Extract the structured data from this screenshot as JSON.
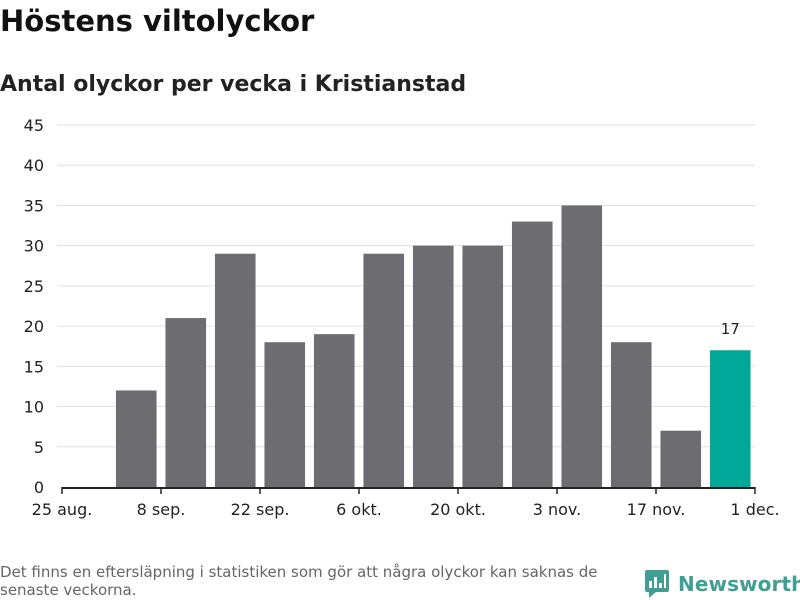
{
  "header": {
    "title": "Höstens viltolyckor",
    "subtitle": "Antal olyckor per vecka i Kristianstad"
  },
  "footer": {
    "note": "Det finns en eftersläpning i statistiken som gör att några olyckor kan saknas de senaste veckorna.",
    "brand": "Newsworthy"
  },
  "colors": {
    "bar": "#6d6c71",
    "highlight": "#00a89a",
    "grid": "#e0e0e0",
    "axis": "#222222",
    "brand": "#3f9f94"
  },
  "chart_data": {
    "type": "bar",
    "title": "Antal olyckor per vecka i Kristianstad",
    "x_tick_labels": [
      "25 aug.",
      "8 sep.",
      "22 sep.",
      "6 okt.",
      "20 okt.",
      "3 nov.",
      "17 nov.",
      "1 dec."
    ],
    "y_ticks": [
      0,
      5,
      10,
      15,
      20,
      25,
      30,
      35,
      40,
      45
    ],
    "ylim": [
      0,
      45
    ],
    "grid": true,
    "values": [
      12,
      21,
      29,
      18,
      19,
      29,
      30,
      30,
      33,
      35,
      18,
      7,
      17
    ],
    "highlight_index": 12,
    "data_labels": [
      {
        "index": 12,
        "text": "17"
      }
    ]
  }
}
